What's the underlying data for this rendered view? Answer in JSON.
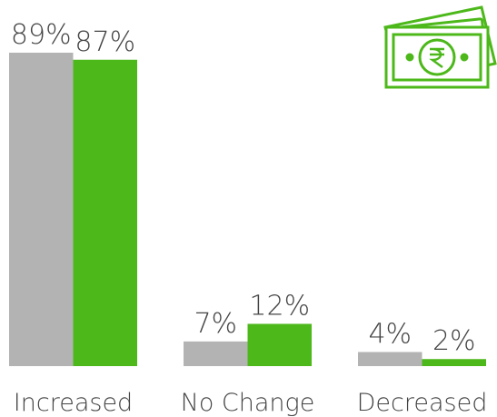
{
  "chart_data": {
    "type": "bar",
    "categories": [
      "Increased",
      "No Change",
      "Decreased"
    ],
    "series": [
      {
        "color": "#b3b3b3",
        "values": [
          89,
          7,
          4
        ],
        "value_labels": [
          "89%",
          "7%",
          "4%"
        ]
      },
      {
        "color": "#4cb81a",
        "values": [
          87,
          12,
          2
        ],
        "value_labels": [
          "87%",
          "12%",
          "2%"
        ]
      }
    ]
  }
}
